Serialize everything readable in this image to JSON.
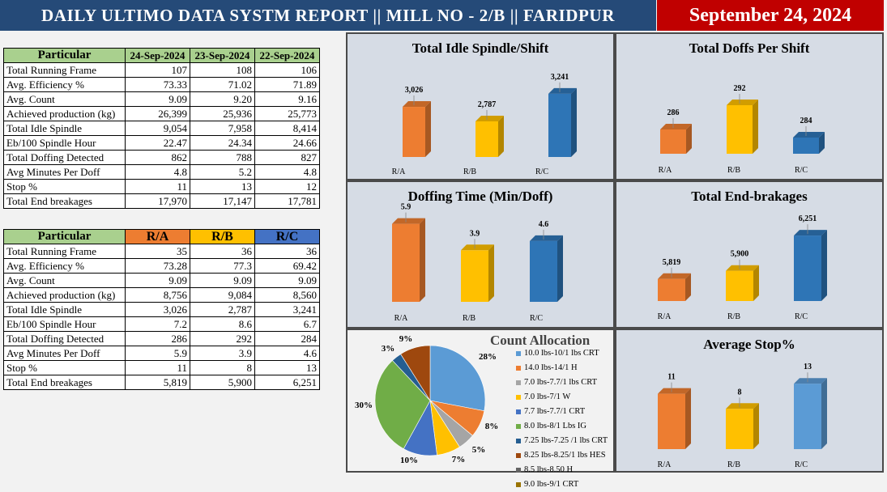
{
  "header": {
    "title": "DAILY ULTIMO DATA SYSTM REPORT || MILL NO - 2/B || FARIDPUR",
    "date": "September 24, 2024"
  },
  "colors": {
    "RA": "#ed7d31",
    "RB": "#ffc000",
    "RC": "#2e75b6",
    "RC_light": "#5b9bd5"
  },
  "table_dates": {
    "headers": [
      "Particular",
      "24-Sep-2024",
      "23-Sep-2024",
      "22-Sep-2024"
    ],
    "rows": [
      [
        "Total Running Frame",
        "107",
        "108",
        "106"
      ],
      [
        "Avg. Efficiency %",
        "73.33",
        "71.02",
        "71.89"
      ],
      [
        "Avg. Count",
        "9.09",
        "9.20",
        "9.16"
      ],
      [
        "Achieved production (kg)",
        "26,399",
        "25,936",
        "25,773"
      ],
      [
        "Total Idle Spindle",
        "9,054",
        "7,958",
        "8,414"
      ],
      [
        "Eb/100 Spindle Hour",
        "22.47",
        "24.34",
        "24.66"
      ],
      [
        "Total Doffing Detected",
        "862",
        "788",
        "827"
      ],
      [
        "Avg Minutes Per Doff",
        "4.8",
        "5.2",
        "4.8"
      ],
      [
        "Stop %",
        "11",
        "13",
        "12"
      ],
      [
        "Total End breakages",
        "17,970",
        "17,147",
        "17,781"
      ]
    ]
  },
  "table_rings": {
    "headers": [
      "Particular",
      "R/A",
      "R/B",
      "R/C"
    ],
    "rows": [
      [
        "Total Running Frame",
        "35",
        "36",
        "36"
      ],
      [
        "Avg. Efficiency %",
        "73.28",
        "77.3",
        "69.42"
      ],
      [
        "Avg. Count",
        "9.09",
        "9.09",
        "9.09"
      ],
      [
        "Achieved production (kg)",
        "8,756",
        "9,084",
        "8,560"
      ],
      [
        "Total Idle Spindle",
        "3,026",
        "2,787",
        "3,241"
      ],
      [
        "Eb/100 Spindle Hour",
        "7.2",
        "8.6",
        "6.7"
      ],
      [
        "Total Doffing Detected",
        "286",
        "292",
        "284"
      ],
      [
        "Avg Minutes Per Doff",
        "5.9",
        "3.9",
        "4.6"
      ],
      [
        "Stop %",
        "11",
        "8",
        "13"
      ],
      [
        "Total End breakages",
        "5,819",
        "5,900",
        "6,251"
      ]
    ]
  },
  "chart_data": [
    {
      "type": "bar",
      "title": "Total Idle Spindle/Shift",
      "categories": [
        "R/A",
        "R/B",
        "R/C"
      ],
      "values": [
        3026,
        2787,
        3241
      ],
      "labels": [
        "3,026",
        "2,787",
        "3,241"
      ],
      "ylim": [
        2200,
        3400
      ]
    },
    {
      "type": "bar",
      "title": "Total Doffs Per Shift",
      "categories": [
        "R/A",
        "R/B",
        "R/C"
      ],
      "values": [
        286,
        292,
        284
      ],
      "labels": [
        "286",
        "292",
        "284"
      ],
      "ylim": [
        280,
        294
      ]
    },
    {
      "type": "bar",
      "title": "Doffing Time (Min/Doff)",
      "categories": [
        "R/A",
        "R/B",
        "R/C"
      ],
      "values": [
        5.9,
        3.9,
        4.6
      ],
      "labels": [
        "5.9",
        "3.9",
        "4.6"
      ],
      "ylim": [
        0,
        6
      ]
    },
    {
      "type": "bar",
      "title": "Total End-brakages",
      "categories": [
        "R/A",
        "R/B",
        "R/C"
      ],
      "values": [
        5819,
        5900,
        6251
      ],
      "labels": [
        "5,819",
        "5,900",
        "6,251"
      ],
      "ylim": [
        5600,
        6300
      ]
    },
    {
      "type": "pie",
      "title": "Count Allocation",
      "slices": [
        {
          "name": "10.0 lbs-10/1 lbs CRT",
          "value": 28,
          "label": "28%",
          "color": "#5b9bd5"
        },
        {
          "name": "14.0 lbs-14/1 H",
          "value": 8,
          "label": "8%",
          "color": "#ed7d31"
        },
        {
          "name": "7.0 lbs-7.7/1 lbs CRT",
          "value": 5,
          "label": "5%",
          "color": "#a5a5a5"
        },
        {
          "name": "7.0 lbs-7/1 W",
          "value": 7,
          "label": "7%",
          "color": "#ffc000"
        },
        {
          "name": "7.7 lbs-7.7/1 CRT",
          "value": 10,
          "label": "10%",
          "color": "#4472c4"
        },
        {
          "name": "8.0 lbs-8/1 Lbs IG",
          "value": 30,
          "label": "30%",
          "color": "#70ad47"
        },
        {
          "name": "7.25 lbs-7.25 /1 lbs CRT",
          "value": 3,
          "label": "3%",
          "color": "#255e91"
        },
        {
          "name": "8.25 lbs-8.25/1 lbs HES",
          "value": 9,
          "label": "9%",
          "color": "#9e480e"
        },
        {
          "name": "8.5 lbs-8.50 H",
          "value": 0,
          "label": "",
          "color": "#636363"
        },
        {
          "name": "9.0 lbs-9/1 CRT",
          "value": 0,
          "label": "",
          "color": "#997300"
        }
      ]
    },
    {
      "type": "bar",
      "title": "Average Stop%",
      "categories": [
        "R/A",
        "R/B",
        "R/C"
      ],
      "values": [
        11,
        8,
        13
      ],
      "labels": [
        "11",
        "8",
        "13"
      ],
      "ylim": [
        0,
        14
      ]
    }
  ]
}
